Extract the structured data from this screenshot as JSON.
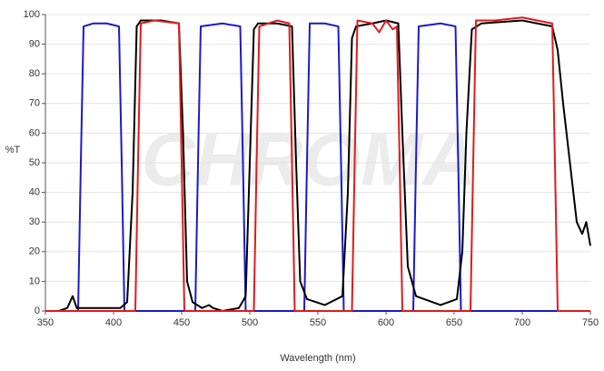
{
  "chart_data": {
    "type": "line",
    "watermark": "CHROMA",
    "x_label": "Wavelength (nm)",
    "y_label": "%T",
    "xlim": [
      350,
      750
    ],
    "xticks": [
      350,
      400,
      450,
      500,
      550,
      600,
      650,
      700,
      750
    ],
    "ylim": [
      0,
      100
    ],
    "yticks": [
      0,
      10,
      20,
      30,
      40,
      50,
      60,
      70,
      80,
      90,
      100
    ],
    "grid": true,
    "series": [
      {
        "color": "#1a1acc",
        "x": [
          350,
          374,
          376,
          378,
          385,
          395,
          404,
          406,
          408,
          460,
          462,
          464,
          480,
          493,
          495,
          497,
          540,
          542,
          544,
          555,
          565,
          567,
          569,
          620,
          622,
          624,
          640,
          651,
          653,
          655,
          750
        ],
        "values": [
          0,
          0,
          50,
          96,
          97,
          97,
          96,
          50,
          0,
          0,
          50,
          96,
          97,
          96,
          50,
          0,
          0,
          50,
          97,
          97,
          96,
          50,
          0,
          0,
          50,
          96,
          97,
          96,
          50,
          0,
          0
        ]
      },
      {
        "color": "#000000",
        "x": [
          350,
          360,
          366,
          370,
          373,
          380,
          390,
          405,
          410,
          414,
          417,
          420,
          435,
          448,
          451,
          454,
          458,
          465,
          470,
          473,
          480,
          492,
          497,
          500,
          503,
          506,
          520,
          531,
          534,
          537,
          542,
          555,
          568,
          572,
          575,
          578,
          590,
          600,
          609,
          612,
          616,
          622,
          640,
          652,
          656,
          659,
          663,
          670,
          700,
          722,
          726,
          730,
          735,
          740,
          744,
          747,
          750
        ],
        "values": [
          0,
          0,
          1,
          5,
          1,
          1,
          1,
          1,
          3,
          40,
          96,
          98,
          98,
          97,
          60,
          10,
          3,
          1,
          2,
          1,
          0,
          1,
          5,
          50,
          95,
          97,
          97,
          96,
          50,
          10,
          4,
          2,
          5,
          40,
          92,
          96,
          97,
          98,
          97,
          60,
          15,
          5,
          2,
          4,
          20,
          60,
          95,
          97,
          98,
          96,
          88,
          70,
          50,
          30,
          26,
          30,
          22
        ]
      },
      {
        "color": "#e01a1a",
        "x": [
          350,
          416,
          418,
          420,
          430,
          448,
          450,
          452,
          503,
          505,
          507,
          520,
          529,
          531,
          533,
          575,
          577,
          579,
          590,
          595,
          600,
          605,
          608,
          610,
          612,
          662,
          664,
          666,
          680,
          700,
          722,
          724,
          726,
          750
        ],
        "values": [
          0,
          0,
          50,
          97,
          98,
          97,
          50,
          0,
          0,
          50,
          96,
          98,
          97,
          50,
          0,
          0,
          50,
          98,
          97,
          94,
          98,
          95,
          96,
          50,
          0,
          0,
          50,
          98,
          98,
          99,
          97,
          50,
          0,
          0
        ]
      }
    ]
  }
}
